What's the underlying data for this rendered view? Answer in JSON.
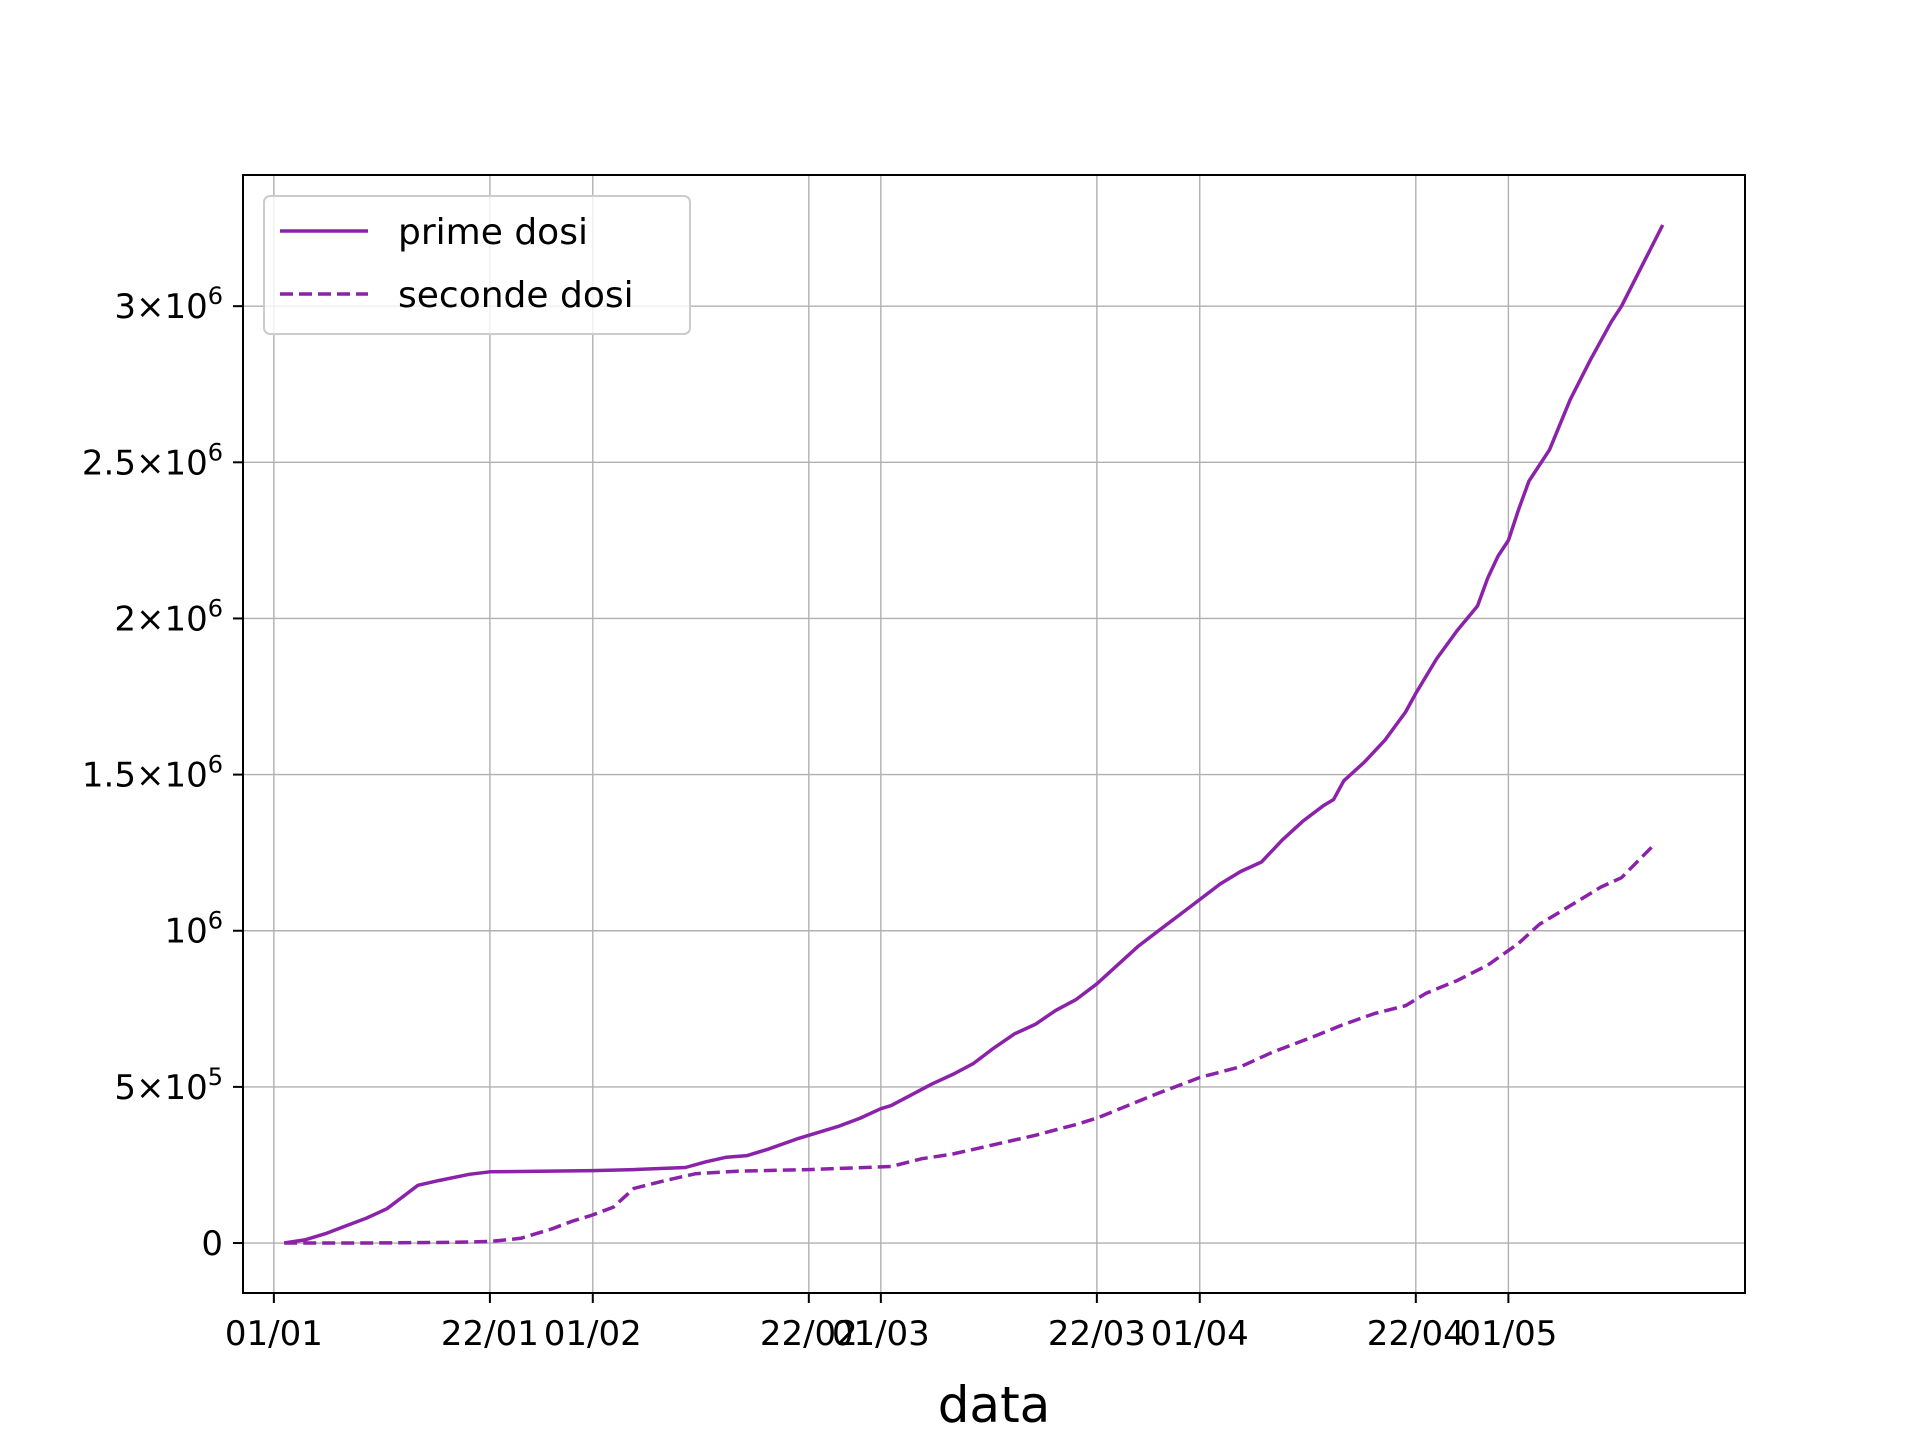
{
  "chart_data": {
    "type": "line",
    "title": "",
    "xlabel": "data",
    "ylabel": "",
    "x_axis": {
      "type": "date",
      "range": [
        "2020-12-29",
        "2021-05-24"
      ],
      "ticks": [
        {
          "date": "2021-01-01",
          "label": "01/01"
        },
        {
          "date": "2021-01-22",
          "label": "22/01"
        },
        {
          "date": "2021-02-01",
          "label": "01/02"
        },
        {
          "date": "2021-02-22",
          "label": "22/02"
        },
        {
          "date": "2021-03-01",
          "label": "01/03"
        },
        {
          "date": "2021-03-22",
          "label": "22/03"
        },
        {
          "date": "2021-04-01",
          "label": "01/04"
        },
        {
          "date": "2021-04-22",
          "label": "22/04"
        },
        {
          "date": "2021-05-01",
          "label": "01/05"
        }
      ]
    },
    "y_axis": {
      "range": [
        -160000,
        3420000
      ],
      "ticks": [
        {
          "value": 0,
          "mant": "0",
          "exp": ""
        },
        {
          "value": 500000,
          "mant": "5×10",
          "exp": "5"
        },
        {
          "value": 1000000,
          "mant": "10",
          "exp": "6"
        },
        {
          "value": 1500000,
          "mant": "1.5×10",
          "exp": "6"
        },
        {
          "value": 2000000,
          "mant": "2×10",
          "exp": "6"
        },
        {
          "value": 2500000,
          "mant": "2.5×10",
          "exp": "6"
        },
        {
          "value": 3000000,
          "mant": "3×10",
          "exp": "6"
        }
      ]
    },
    "grid": true,
    "legend": {
      "placement": "upper-left"
    },
    "series": [
      {
        "name": "prime dosi",
        "color": "#8b22aa",
        "style": "solid",
        "points": [
          [
            "2021-01-02",
            0
          ],
          [
            "2021-01-04",
            10000
          ],
          [
            "2021-01-06",
            30000
          ],
          [
            "2021-01-08",
            55000
          ],
          [
            "2021-01-10",
            80000
          ],
          [
            "2021-01-12",
            110000
          ],
          [
            "2021-01-14",
            160000
          ],
          [
            "2021-01-15",
            185000
          ],
          [
            "2021-01-17",
            200000
          ],
          [
            "2021-01-20",
            220000
          ],
          [
            "2021-01-22",
            228000
          ],
          [
            "2021-02-01",
            232000
          ],
          [
            "2021-02-05",
            235000
          ],
          [
            "2021-02-10",
            242000
          ],
          [
            "2021-02-12",
            260000
          ],
          [
            "2021-02-14",
            275000
          ],
          [
            "2021-02-16",
            280000
          ],
          [
            "2021-02-18",
            300000
          ],
          [
            "2021-02-21",
            335000
          ],
          [
            "2021-02-22",
            345000
          ],
          [
            "2021-02-25",
            375000
          ],
          [
            "2021-02-27",
            400000
          ],
          [
            "2021-03-01",
            430000
          ],
          [
            "2021-03-02",
            440000
          ],
          [
            "2021-03-04",
            475000
          ],
          [
            "2021-03-06",
            510000
          ],
          [
            "2021-03-08",
            540000
          ],
          [
            "2021-03-10",
            575000
          ],
          [
            "2021-03-12",
            625000
          ],
          [
            "2021-03-14",
            670000
          ],
          [
            "2021-03-16",
            700000
          ],
          [
            "2021-03-18",
            745000
          ],
          [
            "2021-03-20",
            780000
          ],
          [
            "2021-03-22",
            830000
          ],
          [
            "2021-03-24",
            890000
          ],
          [
            "2021-03-26",
            950000
          ],
          [
            "2021-03-28",
            1000000
          ],
          [
            "2021-03-30",
            1050000
          ],
          [
            "2021-04-01",
            1100000
          ],
          [
            "2021-04-03",
            1150000
          ],
          [
            "2021-04-05",
            1190000
          ],
          [
            "2021-04-07",
            1220000
          ],
          [
            "2021-04-09",
            1290000
          ],
          [
            "2021-04-11",
            1350000
          ],
          [
            "2021-04-13",
            1400000
          ],
          [
            "2021-04-14",
            1420000
          ],
          [
            "2021-04-15",
            1480000
          ],
          [
            "2021-04-17",
            1540000
          ],
          [
            "2021-04-19",
            1610000
          ],
          [
            "2021-04-21",
            1700000
          ],
          [
            "2021-04-22",
            1760000
          ],
          [
            "2021-04-24",
            1870000
          ],
          [
            "2021-04-26",
            1960000
          ],
          [
            "2021-04-28",
            2040000
          ],
          [
            "2021-04-29",
            2130000
          ],
          [
            "2021-04-30",
            2200000
          ],
          [
            "2021-05-01",
            2250000
          ],
          [
            "2021-05-02",
            2350000
          ],
          [
            "2021-05-03",
            2440000
          ],
          [
            "2021-05-05",
            2540000
          ],
          [
            "2021-05-07",
            2700000
          ],
          [
            "2021-05-09",
            2830000
          ],
          [
            "2021-05-11",
            2950000
          ],
          [
            "2021-05-12",
            3000000
          ],
          [
            "2021-05-14",
            3130000
          ],
          [
            "2021-05-16",
            3260000
          ]
        ]
      },
      {
        "name": "seconde dosi",
        "color": "#8b22aa",
        "style": "dashed",
        "points": [
          [
            "2021-01-02",
            0
          ],
          [
            "2021-01-10",
            0
          ],
          [
            "2021-01-18",
            2000
          ],
          [
            "2021-01-22",
            5000
          ],
          [
            "2021-01-25",
            15000
          ],
          [
            "2021-01-28",
            45000
          ],
          [
            "2021-01-30",
            70000
          ],
          [
            "2021-02-01",
            90000
          ],
          [
            "2021-02-03",
            115000
          ],
          [
            "2021-02-05",
            175000
          ],
          [
            "2021-02-08",
            200000
          ],
          [
            "2021-02-11",
            222000
          ],
          [
            "2021-02-15",
            230000
          ],
          [
            "2021-02-22",
            235000
          ],
          [
            "2021-03-02",
            245000
          ],
          [
            "2021-03-05",
            270000
          ],
          [
            "2021-03-08",
            285000
          ],
          [
            "2021-03-12",
            315000
          ],
          [
            "2021-03-16",
            345000
          ],
          [
            "2021-03-20",
            380000
          ],
          [
            "2021-03-22",
            400000
          ],
          [
            "2021-03-25",
            440000
          ],
          [
            "2021-03-28",
            480000
          ],
          [
            "2021-04-01",
            530000
          ],
          [
            "2021-04-05",
            565000
          ],
          [
            "2021-04-08",
            610000
          ],
          [
            "2021-04-12",
            660000
          ],
          [
            "2021-04-15",
            700000
          ],
          [
            "2021-04-18",
            735000
          ],
          [
            "2021-04-21",
            760000
          ],
          [
            "2021-04-23",
            800000
          ],
          [
            "2021-04-26",
            840000
          ],
          [
            "2021-04-29",
            890000
          ],
          [
            "2021-05-02",
            960000
          ],
          [
            "2021-05-04",
            1020000
          ],
          [
            "2021-05-07",
            1080000
          ],
          [
            "2021-05-10",
            1140000
          ],
          [
            "2021-05-12",
            1170000
          ],
          [
            "2021-05-15",
            1270000
          ]
        ]
      }
    ]
  }
}
